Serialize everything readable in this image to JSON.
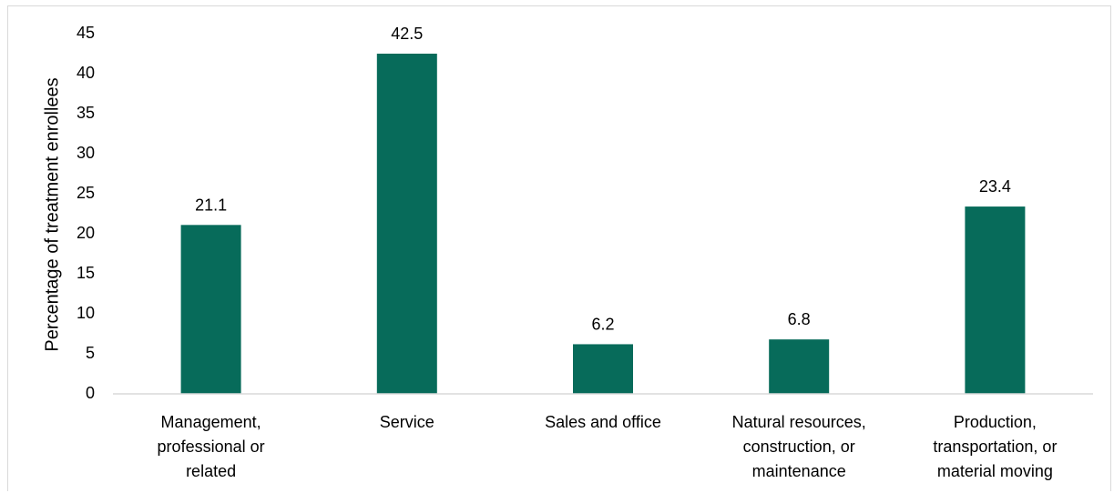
{
  "chart_data": {
    "type": "bar",
    "categories": [
      [
        "Management,",
        "professional or",
        "related"
      ],
      [
        "Service"
      ],
      [
        "Sales and office"
      ],
      [
        "Natural resources,",
        "construction, or",
        "maintenance"
      ],
      [
        "Production,",
        "transportation, or",
        "material moving"
      ]
    ],
    "values": [
      21.1,
      42.5,
      6.2,
      6.8,
      23.4
    ],
    "data_labels": [
      "21.1",
      "42.5",
      "6.2",
      "6.8",
      "23.4"
    ],
    "title": "",
    "xlabel": "",
    "ylabel": "Percentage of treatment enrollees",
    "ylim": [
      0,
      45
    ],
    "yticks": [
      0,
      5,
      10,
      15,
      20,
      25,
      30,
      35,
      40,
      45
    ],
    "grid": false,
    "legend": "none",
    "bar_color": "#076b5a"
  }
}
